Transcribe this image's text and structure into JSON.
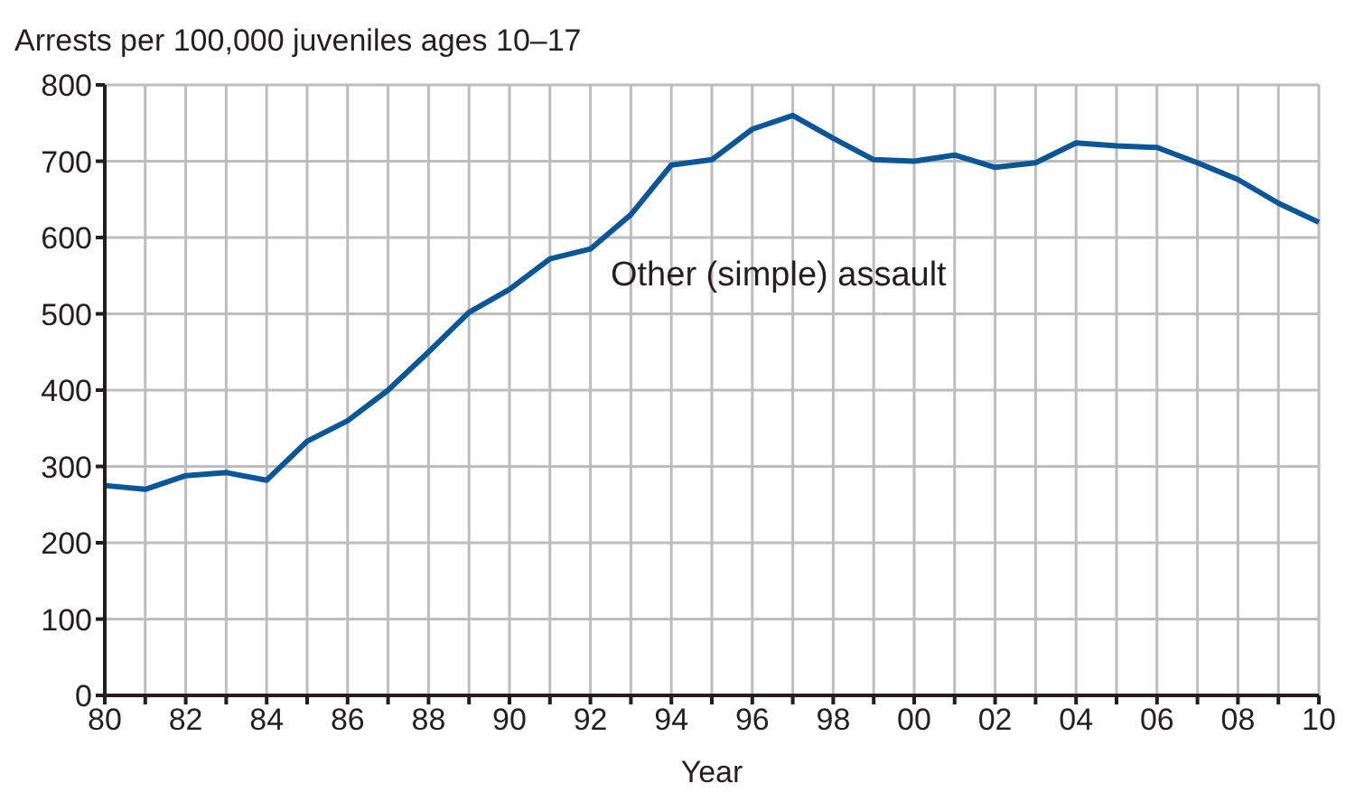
{
  "chart_data": {
    "type": "line",
    "ylabel": "Arrests per 100,000 juveniles ages 10–17",
    "xlabel": "Year",
    "categories": [
      "80",
      null,
      "82",
      null,
      "84",
      null,
      "86",
      null,
      "88",
      null,
      "90",
      null,
      "92",
      null,
      "94",
      null,
      "96",
      null,
      "98",
      null,
      "00",
      null,
      "02",
      null,
      "04",
      null,
      "06",
      null,
      "08",
      null,
      "10"
    ],
    "series": [
      {
        "name": "Other (simple) assault",
        "color": "#0a5697",
        "values": [
          275,
          270,
          288,
          292,
          282,
          333,
          360,
          400,
          450,
          502,
          532,
          572,
          585,
          630,
          695,
          702,
          742,
          760,
          730,
          702,
          700,
          708,
          692,
          698,
          724,
          720,
          718,
          698,
          676,
          645,
          620
        ]
      }
    ],
    "ylim": [
      0,
      800
    ],
    "yticks": [
      0,
      100,
      200,
      300,
      400,
      500,
      600,
      700,
      800
    ],
    "grid": true,
    "marker": "none",
    "line_style": "solid",
    "legend": false
  }
}
